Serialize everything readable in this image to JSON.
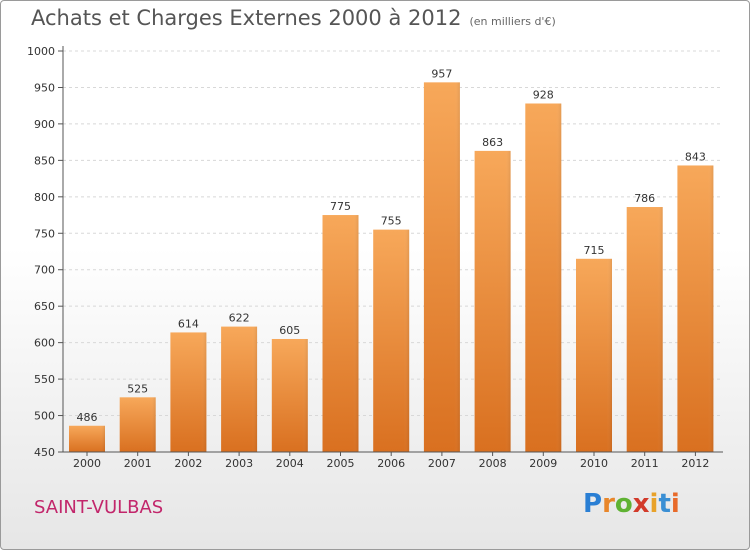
{
  "title": "Achats et Charges Externes 2000 à 2012",
  "subtitle": "(en milliers d'€)",
  "commune": "SAINT-VULBAS",
  "logo": {
    "letters": [
      "P",
      "r",
      "o",
      "x",
      "i",
      "t",
      "i"
    ],
    "colors": [
      "#2a7fd4",
      "#e8862a",
      "#5fb233",
      "#d23a2a",
      "#e8a22a",
      "#3a8fd4",
      "#e86a2a"
    ]
  },
  "colors": {
    "bar_light": "#f7a85a",
    "bar_dark": "#d97020",
    "commune": "#c2266b"
  },
  "chart_data": {
    "type": "bar",
    "categories": [
      "2000",
      "2001",
      "2002",
      "2003",
      "2004",
      "2005",
      "2006",
      "2007",
      "2008",
      "2009",
      "2010",
      "2011",
      "2012"
    ],
    "values": [
      486,
      525,
      614,
      622,
      605,
      775,
      755,
      957,
      863,
      928,
      715,
      786,
      843
    ],
    "ylim": [
      450,
      1000
    ],
    "yticks": [
      450,
      500,
      550,
      600,
      650,
      700,
      750,
      800,
      850,
      900,
      950,
      1000
    ],
    "grid": true
  }
}
